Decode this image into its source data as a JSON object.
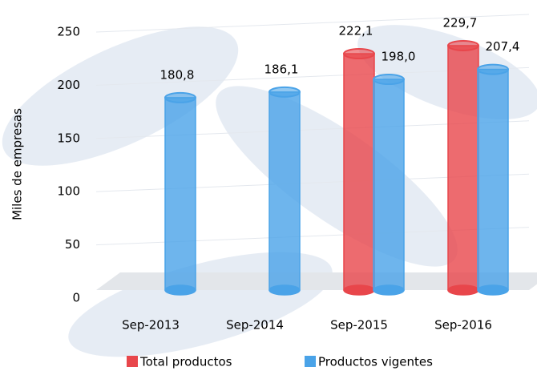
{
  "chart_data": {
    "type": "bar",
    "y_label": "Miles de empresas",
    "categories": [
      "Sep-2013",
      "Sep-2014",
      "Sep-2015",
      "Sep-2016"
    ],
    "series": [
      {
        "name": "Total productos",
        "color": "#e8464b",
        "values": [
          null,
          null,
          222.1,
          229.7
        ],
        "value_labels": [
          null,
          null,
          "222,1",
          "229,7"
        ]
      },
      {
        "name": "Productos vigentes",
        "color": "#4aa3e8",
        "values": [
          180.8,
          186.1,
          198.0,
          207.4
        ],
        "value_labels": [
          "180,8",
          "186,1",
          "198,0",
          "207,4"
        ]
      }
    ],
    "ylim": [
      0,
      250
    ],
    "yticks": [
      0,
      50,
      100,
      150,
      200,
      250
    ],
    "grid": true,
    "legend": "bottom"
  }
}
